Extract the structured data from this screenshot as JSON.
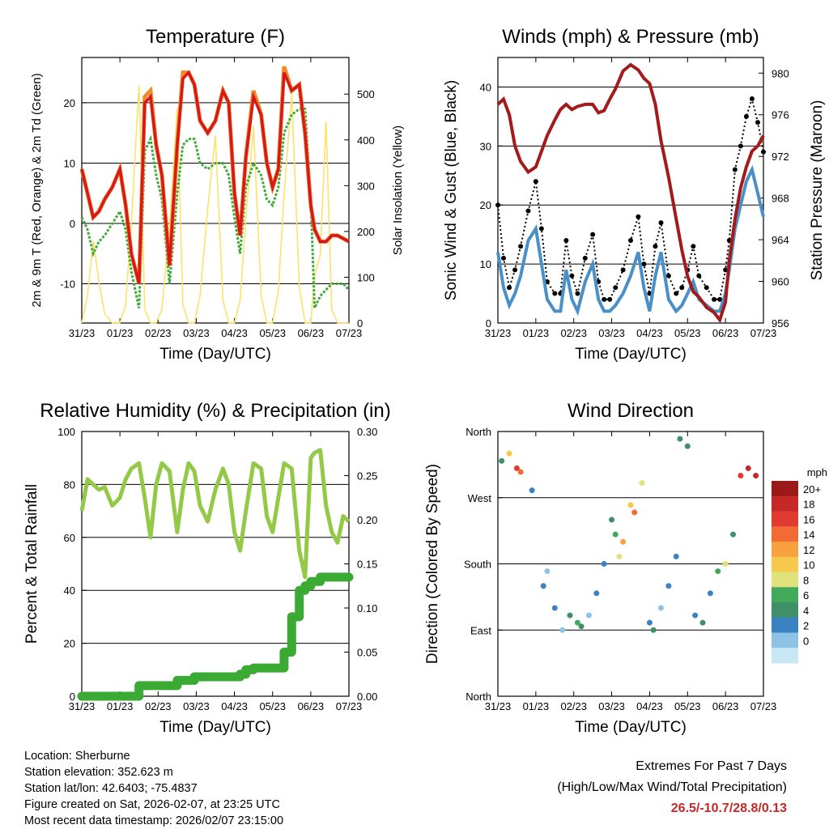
{
  "colors": {
    "temp2m": "#d7191c",
    "temp9m": "#f08a2a",
    "dewpoint": "#3aaa35",
    "solar": "#fde26a",
    "wind": "#4a90c8",
    "gust": "#000000",
    "pressure": "#a31a1a",
    "rh": "#94c947",
    "precip": "#3aaa35"
  },
  "x_ticks": [
    "31/23",
    "01/23",
    "02/23",
    "03/23",
    "04/23",
    "05/23",
    "06/23",
    "07/23"
  ],
  "x_label": "Time (Day/UTC)",
  "chart_data": [
    {
      "type": "line",
      "title": "Temperature (F)",
      "xlabel": "Time (Day/UTC)",
      "ylabel": "2m & 9m T (Red, Orange) & 2m Td (Green)",
      "y2label": "Solar Insolation (Yellow)",
      "ylim": [
        -16.5,
        27.5
      ],
      "y_ticks": [
        -10,
        0,
        10,
        20
      ],
      "y2lim": [
        0,
        580
      ],
      "y2_ticks": [
        0,
        100,
        200,
        300,
        400,
        500
      ],
      "x": [
        0,
        0.15,
        0.3,
        0.45,
        0.6,
        0.8,
        1.0,
        1.15,
        1.3,
        1.5,
        1.65,
        1.8,
        1.95,
        2.1,
        2.3,
        2.5,
        2.65,
        2.8,
        2.95,
        3.1,
        3.3,
        3.5,
        3.7,
        3.85,
        4.0,
        4.15,
        4.3,
        4.5,
        4.7,
        4.85,
        5.0,
        5.15,
        5.3,
        5.5,
        5.7,
        5.85,
        6.0,
        6.1,
        6.25,
        6.4,
        6.55,
        6.7,
        6.85,
        7.0
      ],
      "series": [
        {
          "name": "2m T",
          "values": [
            9,
            5,
            1,
            2,
            4,
            6,
            9,
            3,
            -5,
            -10,
            20,
            21,
            13,
            8,
            -7,
            13,
            24,
            25,
            23,
            17,
            15,
            17,
            22,
            20,
            5,
            -2,
            11,
            21,
            18,
            10,
            6,
            9,
            25,
            22,
            23,
            15,
            3,
            -1,
            -3,
            -3,
            -2,
            -2,
            -2.5,
            -3
          ]
        },
        {
          "name": "9m T",
          "values": [
            9,
            5,
            1,
            2,
            4,
            6,
            9,
            3,
            -5,
            -10,
            21,
            22,
            13,
            8,
            -7,
            13,
            25,
            25,
            23,
            17,
            15,
            17,
            22,
            20,
            5,
            -2,
            11,
            22,
            18,
            10,
            6,
            9,
            26,
            22,
            23,
            15,
            3,
            -1,
            -3,
            -3,
            -2,
            -2,
            -2.5,
            -3
          ]
        },
        {
          "name": "2m Td",
          "values": [
            1,
            -1,
            -5,
            -3,
            -2,
            0,
            2,
            -1,
            -8,
            -14,
            12,
            14,
            8,
            4,
            -10,
            5,
            13,
            14,
            14,
            10,
            9,
            10,
            10,
            8,
            1,
            -5,
            6,
            10,
            8,
            4,
            3,
            6,
            15,
            18,
            19,
            19,
            4,
            -14,
            -12,
            -11,
            -10,
            -10,
            -10,
            -11
          ]
        },
        {
          "name": "Solar Insolation",
          "values": [
            0,
            60,
            180,
            90,
            20,
            0,
            0,
            40,
            220,
            520,
            30,
            0,
            0,
            30,
            210,
            470,
            40,
            0,
            0,
            60,
            250,
            410,
            50,
            0,
            0,
            50,
            230,
            430,
            60,
            0,
            0,
            70,
            280,
            500,
            80,
            0,
            0,
            100,
            150,
            440,
            30,
            0,
            0,
            0
          ]
        }
      ]
    },
    {
      "type": "line",
      "title": "Winds (mph) & Pressure (mb)",
      "xlabel": "Time (Day/UTC)",
      "ylabel": "Sonic Wind & Gust (Blue, Black)",
      "y2label": "Station Pressure (Maroon)",
      "ylim": [
        0,
        45
      ],
      "y_ticks": [
        0,
        10,
        20,
        30,
        40
      ],
      "y2lim": [
        956,
        981.5
      ],
      "y2_ticks": [
        956,
        960,
        964,
        968,
        972,
        976,
        980
      ],
      "x": [
        0,
        0.15,
        0.3,
        0.45,
        0.6,
        0.8,
        1.0,
        1.15,
        1.3,
        1.5,
        1.65,
        1.8,
        1.95,
        2.1,
        2.3,
        2.5,
        2.65,
        2.8,
        2.95,
        3.1,
        3.3,
        3.5,
        3.7,
        3.85,
        4.0,
        4.15,
        4.3,
        4.5,
        4.7,
        4.85,
        5.0,
        5.15,
        5.3,
        5.5,
        5.7,
        5.85,
        6.0,
        6.1,
        6.25,
        6.4,
        6.55,
        6.7,
        6.85,
        7.0
      ],
      "series": [
        {
          "name": "Sonic Wind",
          "values": [
            12,
            6,
            3,
            5,
            8,
            14,
            16,
            10,
            4,
            2,
            2,
            9,
            4,
            2,
            7,
            10,
            4,
            2,
            2,
            3,
            5,
            8,
            12,
            6,
            2,
            8,
            12,
            4,
            2,
            3,
            5,
            7,
            4,
            3,
            2,
            2,
            5,
            9,
            16,
            20,
            24,
            26,
            22,
            18
          ]
        },
        {
          "name": "Gust",
          "values": [
            20,
            11,
            6,
            9,
            13,
            19,
            24,
            16,
            7,
            5,
            5,
            14,
            8,
            5,
            11,
            15,
            7,
            4,
            4,
            6,
            9,
            14,
            18,
            10,
            5,
            13,
            17,
            8,
            5,
            6,
            9,
            13,
            8,
            6,
            4,
            4,
            9,
            14,
            26,
            30,
            35,
            38,
            34,
            29
          ]
        },
        {
          "name": "Station Pressure",
          "values": [
            977,
            977.5,
            976,
            973,
            971.5,
            970.5,
            971,
            972.5,
            974,
            975.5,
            976.5,
            977,
            976.5,
            976.8,
            977,
            977,
            976.2,
            976.4,
            977.5,
            978.5,
            980.2,
            980.8,
            980.3,
            979.5,
            979,
            977,
            973.5,
            970,
            966,
            963,
            960.5,
            959,
            958.5,
            957.5,
            957,
            956.3,
            958,
            962,
            966,
            969,
            971,
            972.5,
            973,
            974
          ]
        }
      ]
    },
    {
      "type": "line",
      "title": "Relative Humidity (%) & Precipitation (in)",
      "xlabel": "Time (Day/UTC)",
      "ylabel": "Percent & Total Rainfall",
      "ylim": [
        0,
        100
      ],
      "y_ticks": [
        0,
        20,
        40,
        60,
        80,
        100
      ],
      "y2lim": [
        0,
        0.3
      ],
      "y2_ticks": [
        "0.00",
        "0.05",
        "0.10",
        "0.15",
        "0.20",
        "0.25",
        "0.30"
      ],
      "x": [
        0,
        0.15,
        0.3,
        0.45,
        0.6,
        0.8,
        1.0,
        1.15,
        1.3,
        1.5,
        1.65,
        1.8,
        1.95,
        2.1,
        2.3,
        2.5,
        2.65,
        2.8,
        2.95,
        3.1,
        3.3,
        3.5,
        3.7,
        3.85,
        4.0,
        4.15,
        4.3,
        4.5,
        4.7,
        4.85,
        5.0,
        5.15,
        5.3,
        5.5,
        5.7,
        5.85,
        6.0,
        6.1,
        6.25,
        6.4,
        6.55,
        6.7,
        6.85,
        7.0
      ],
      "series": [
        {
          "name": "Relative Humidity",
          "values": [
            70,
            82,
            80,
            78,
            79,
            72,
            75,
            82,
            86,
            88,
            75,
            60,
            80,
            88,
            85,
            62,
            78,
            88,
            85,
            72,
            66,
            78,
            86,
            80,
            62,
            55,
            70,
            88,
            86,
            68,
            62,
            75,
            88,
            86,
            55,
            45,
            90,
            92,
            93,
            72,
            62,
            58,
            68,
            66
          ]
        },
        {
          "name": "Total Precipitation",
          "values": [
            0,
            0,
            0,
            0,
            0,
            0,
            0,
            0,
            0,
            0.012,
            0.012,
            0.012,
            0.012,
            0.012,
            0.012,
            0.018,
            0.018,
            0.018,
            0.022,
            0.022,
            0.022,
            0.022,
            0.022,
            0.022,
            0.022,
            0.025,
            0.03,
            0.032,
            0.032,
            0.032,
            0.032,
            0.032,
            0.05,
            0.09,
            0.12,
            0.125,
            0.13,
            0.13,
            0.135,
            0.135,
            0.135,
            0.135,
            0.135,
            0.135
          ]
        }
      ]
    },
    {
      "type": "scatter",
      "title": "Wind Direction",
      "xlabel": "Time (Day/UTC)",
      "ylabel": "Direction (Colored By Speed)",
      "y_ticks": [
        "North",
        "East",
        "South",
        "West",
        "North"
      ],
      "ylim": [
        0,
        360
      ],
      "x": [
        0.1,
        0.3,
        0.5,
        0.6,
        0.9,
        1.2,
        1.3,
        1.5,
        1.7,
        1.9,
        2.1,
        2.2,
        2.4,
        2.6,
        2.8,
        3.0,
        3.1,
        3.2,
        3.3,
        3.5,
        3.6,
        3.8,
        4.0,
        4.1,
        4.3,
        4.5,
        4.7,
        4.8,
        5.0,
        5.2,
        5.4,
        5.6,
        5.8,
        6.0,
        6.2,
        6.4,
        6.6,
        6.8
      ],
      "direction_deg": [
        320,
        330,
        310,
        305,
        280,
        150,
        170,
        120,
        90,
        110,
        100,
        95,
        110,
        140,
        180,
        240,
        220,
        190,
        210,
        260,
        250,
        290,
        100,
        90,
        120,
        150,
        190,
        350,
        340,
        110,
        100,
        140,
        170,
        180,
        220,
        300,
        310,
        300
      ],
      "speed_mph": [
        6,
        12,
        18,
        16,
        4,
        3,
        2,
        4,
        2,
        5,
        7,
        6,
        2,
        3,
        4,
        6,
        8,
        10,
        14,
        12,
        16,
        10,
        3,
        5,
        2,
        3,
        4,
        6,
        5,
        4,
        6,
        3,
        8,
        10,
        6,
        18,
        22,
        20
      ],
      "colorbar": {
        "title": "mph",
        "labels": [
          "20+",
          "18",
          "16",
          "14",
          "12",
          "10",
          "8",
          "6",
          "4",
          "2",
          "0"
        ],
        "colors": [
          "#9b1a17",
          "#c62828",
          "#e03a31",
          "#f26b35",
          "#f9a03f",
          "#f6c94d",
          "#dfe27a",
          "#42a85a",
          "#3f8f6a",
          "#3b82c4",
          "#8ec3e6",
          "#c9e8f6"
        ]
      }
    }
  ],
  "info": {
    "location": "Location: Sherburne",
    "elevation": "Station elevation: 352.623 m",
    "latlon": "Station lat/lon: 42.6403; -75.4837",
    "created": "Figure created on Sat, 2026-02-07, at 23:25 UTC",
    "timestamp": "Most recent data timestamp: 2026/02/07 23:15:00"
  },
  "extremes": {
    "title": "Extremes For Past 7 Days",
    "subtitle": "(High/Low/Max Wind/Total Precipitation)",
    "values": "26.5/-10.7/28.8/0.13"
  }
}
